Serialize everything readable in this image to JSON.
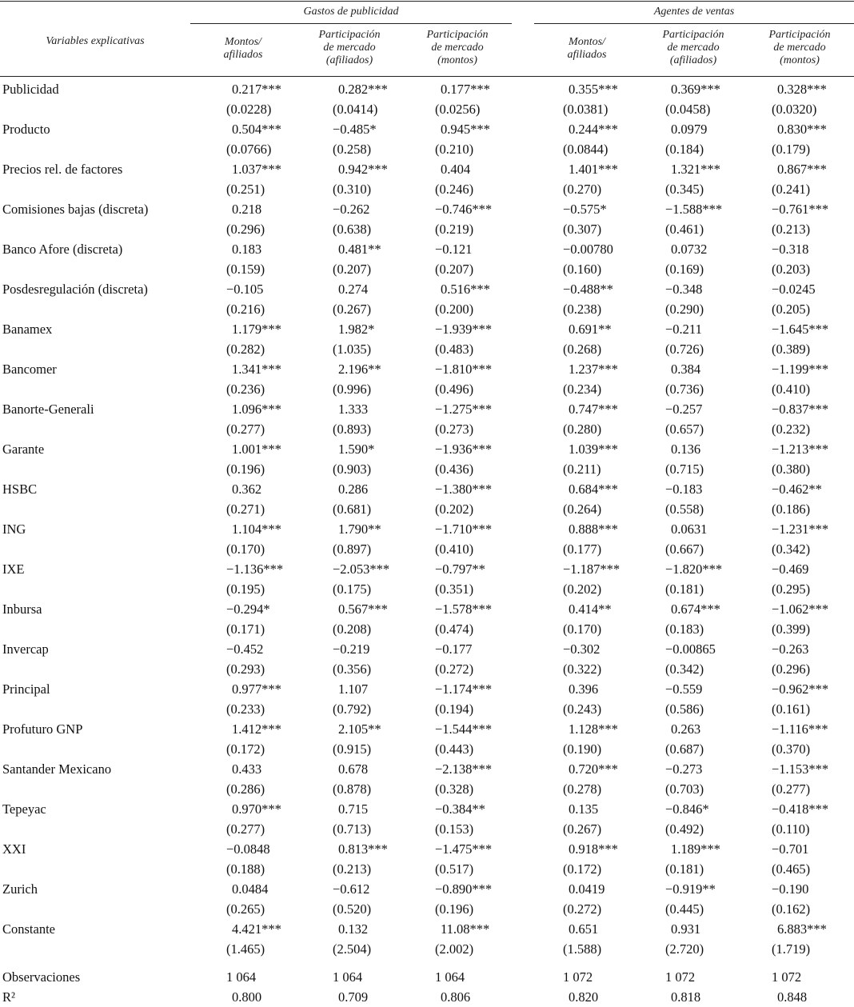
{
  "header": {
    "row_label": "Variables explicativas",
    "groups": [
      "Gastos de publicidad",
      "Agentes de ventas"
    ],
    "columns": [
      [
        "Montos/",
        "afiliados"
      ],
      [
        "Participación",
        "de mercado",
        "(afiliados)"
      ],
      [
        "Participación",
        "de mercado",
        "(montos)"
      ],
      [
        "Montos/",
        "afiliados"
      ],
      [
        "Participación",
        "de mercado",
        "(afiliados)"
      ],
      [
        "Participación",
        "de mercado",
        "(montos)"
      ]
    ]
  },
  "rows": [
    {
      "label": "Publicidad",
      "values": [
        "0.217***",
        "0.282***",
        "0.177***",
        "0.355***",
        "0.369***",
        "0.328***"
      ],
      "se": [
        "(0.0228)",
        "(0.0414)",
        "(0.0256)",
        "(0.0381)",
        "(0.0458)",
        "(0.0320)"
      ]
    },
    {
      "label": "Producto",
      "values": [
        "0.504***",
        "−0.485*",
        "0.945***",
        "0.244***",
        "0.0979",
        "0.830***"
      ],
      "se": [
        "(0.0766)",
        "(0.258)",
        "(0.210)",
        "(0.0844)",
        "(0.184)",
        "(0.179)"
      ]
    },
    {
      "label": "Precios rel. de factores",
      "values": [
        "1.037***",
        "0.942***",
        "0.404",
        "1.401***",
        "1.321***",
        "0.867***"
      ],
      "se": [
        "(0.251)",
        "(0.310)",
        "(0.246)",
        "(0.270)",
        "(0.345)",
        "(0.241)"
      ]
    },
    {
      "label": "Comisiones bajas (discreta)",
      "values": [
        "0.218",
        "−0.262",
        "−0.746***",
        "−0.575*",
        "−1.588***",
        "−0.761***"
      ],
      "se": [
        "(0.296)",
        "(0.638)",
        "(0.219)",
        "(0.307)",
        "(0.461)",
        "(0.213)"
      ]
    },
    {
      "label": "Banco Afore (discreta)",
      "values": [
        "0.183",
        "0.481**",
        "−0.121",
        "−0.00780",
        "0.0732",
        "−0.318"
      ],
      "se": [
        "(0.159)",
        "(0.207)",
        "(0.207)",
        "(0.160)",
        "(0.169)",
        "(0.203)"
      ]
    },
    {
      "label": "Posdesregulación (discreta)",
      "values": [
        "−0.105",
        "0.274",
        "0.516***",
        "−0.488**",
        "−0.348",
        "−0.0245"
      ],
      "se": [
        "(0.216)",
        "(0.267)",
        "(0.200)",
        "(0.238)",
        "(0.290)",
        "(0.205)"
      ]
    },
    {
      "label": "Banamex",
      "values": [
        "1.179***",
        "1.982*",
        "−1.939***",
        "0.691**",
        "−0.211",
        "−1.645***"
      ],
      "se": [
        "(0.282)",
        "(1.035)",
        "(0.483)",
        "(0.268)",
        "(0.726)",
        "(0.389)"
      ]
    },
    {
      "label": "Bancomer",
      "values": [
        "1.341***",
        "2.196**",
        "−1.810***",
        "1.237***",
        "0.384",
        "−1.199***"
      ],
      "se": [
        "(0.236)",
        "(0.996)",
        "(0.496)",
        "(0.234)",
        "(0.736)",
        "(0.410)"
      ]
    },
    {
      "label": "Banorte-Generali",
      "values": [
        "1.096***",
        "1.333",
        "−1.275***",
        "0.747***",
        "−0.257",
        "−0.837***"
      ],
      "se": [
        "(0.277)",
        "(0.893)",
        "(0.273)",
        "(0.280)",
        "(0.657)",
        "(0.232)"
      ]
    },
    {
      "label": "Garante",
      "values": [
        "1.001***",
        "1.590*",
        "−1.936***",
        "1.039***",
        "0.136",
        "−1.213***"
      ],
      "se": [
        "(0.196)",
        "(0.903)",
        "(0.436)",
        "(0.211)",
        "(0.715)",
        "(0.380)"
      ]
    },
    {
      "label": "HSBC",
      "values": [
        "0.362",
        "0.286",
        "−1.380***",
        "0.684***",
        "−0.183",
        "−0.462**"
      ],
      "se": [
        "(0.271)",
        "(0.681)",
        "(0.202)",
        "(0.264)",
        "(0.558)",
        "(0.186)"
      ]
    },
    {
      "label": "ING",
      "values": [
        "1.104***",
        "1.790**",
        "−1.710***",
        "0.888***",
        "0.0631",
        "−1.231***"
      ],
      "se": [
        "(0.170)",
        "(0.897)",
        "(0.410)",
        "(0.177)",
        "(0.667)",
        "(0.342)"
      ]
    },
    {
      "label": "IXE",
      "values": [
        "−1.136***",
        "−2.053***",
        "−0.797**",
        "−1.187***",
        "−1.820***",
        "−0.469"
      ],
      "se": [
        "(0.195)",
        "(0.175)",
        "(0.351)",
        "(0.202)",
        "(0.181)",
        "(0.295)"
      ]
    },
    {
      "label": "Inbursa",
      "values": [
        "−0.294*",
        "0.567***",
        "−1.578***",
        "0.414**",
        "0.674***",
        "−1.062***"
      ],
      "se": [
        "(0.171)",
        "(0.208)",
        "(0.474)",
        "(0.170)",
        "(0.183)",
        "(0.399)"
      ]
    },
    {
      "label": "Invercap",
      "values": [
        "−0.452",
        "−0.219",
        "−0.177",
        "−0.302",
        "−0.00865",
        "−0.263"
      ],
      "se": [
        "(0.293)",
        "(0.356)",
        "(0.272)",
        "(0.322)",
        "(0.342)",
        "(0.296)"
      ]
    },
    {
      "label": "Principal",
      "values": [
        "0.977***",
        "1.107",
        "−1.174***",
        "0.396",
        "−0.559",
        "−0.962***"
      ],
      "se": [
        "(0.233)",
        "(0.792)",
        "(0.194)",
        "(0.243)",
        "(0.586)",
        "(0.161)"
      ]
    },
    {
      "label": "Profuturo GNP",
      "values": [
        "1.412***",
        "2.105**",
        "−1.544***",
        "1.128***",
        "0.263",
        "−1.116***"
      ],
      "se": [
        "(0.172)",
        "(0.915)",
        "(0.443)",
        "(0.190)",
        "(0.687)",
        "(0.370)"
      ]
    },
    {
      "label": "Santander Mexicano",
      "values": [
        "0.433",
        "0.678",
        "−2.138***",
        "0.720***",
        "−0.273",
        "−1.153***"
      ],
      "se": [
        "(0.286)",
        "(0.878)",
        "(0.328)",
        "(0.278)",
        "(0.703)",
        "(0.277)"
      ]
    },
    {
      "label": "Tepeyac",
      "values": [
        "0.970***",
        "0.715",
        "−0.384**",
        "0.135",
        "−0.846*",
        "−0.418***"
      ],
      "se": [
        "(0.277)",
        "(0.713)",
        "(0.153)",
        "(0.267)",
        "(0.492)",
        "(0.110)"
      ]
    },
    {
      "label": "XXI",
      "values": [
        "−0.0848",
        "0.813***",
        "−1.475***",
        "0.918***",
        "1.189***",
        "−0.701"
      ],
      "se": [
        "(0.188)",
        "(0.213)",
        "(0.517)",
        "(0.172)",
        "(0.181)",
        "(0.465)"
      ]
    },
    {
      "label": "Zurich",
      "values": [
        "0.0484",
        "−0.612",
        "−0.890***",
        "0.0419",
        "−0.919**",
        "−0.190"
      ],
      "se": [
        "(0.265)",
        "(0.520)",
        "(0.196)",
        "(0.272)",
        "(0.445)",
        "(0.162)"
      ]
    },
    {
      "label": "Constante",
      "values": [
        "4.421***",
        "0.132",
        "11.08***",
        "0.651",
        "0.931",
        "6.883***"
      ],
      "se": [
        "(1.465)",
        "(2.504)",
        "(2.002)",
        "(1.588)",
        "(2.720)",
        "(1.719)"
      ]
    }
  ],
  "footer": [
    {
      "label": "Observaciones",
      "values": [
        "1 064",
        "1 064",
        "1 064",
        "1 072",
        "1 072",
        "1 072"
      ]
    },
    {
      "label": "R²",
      "values": [
        "0.800",
        "0.709",
        "0.806",
        "0.820",
        "0.818",
        "0.848"
      ]
    }
  ]
}
